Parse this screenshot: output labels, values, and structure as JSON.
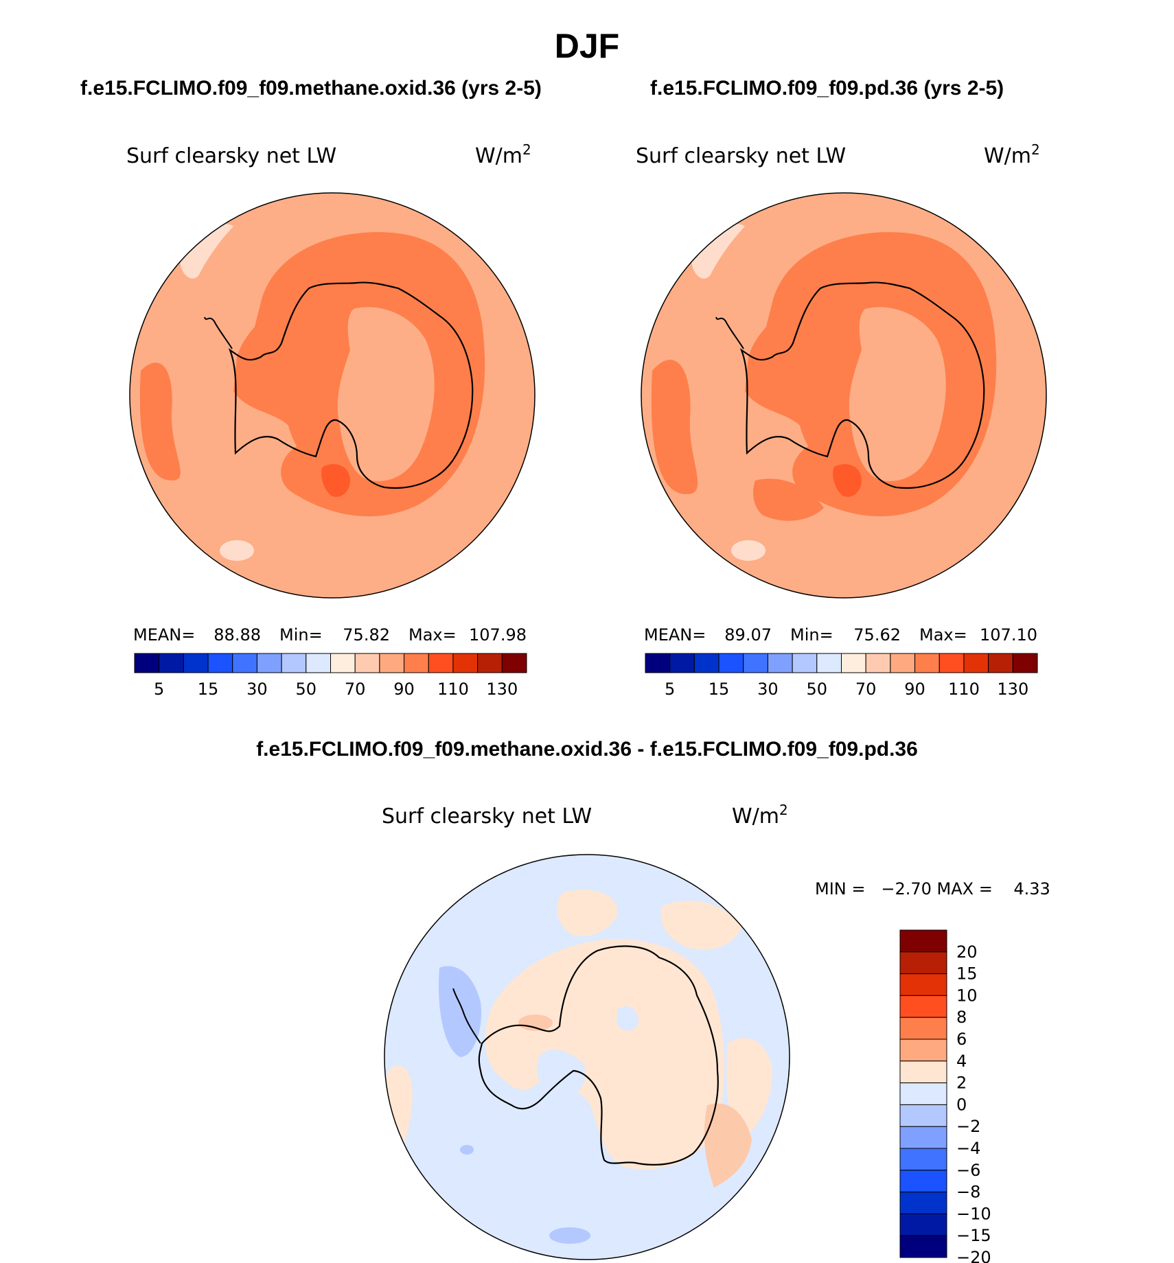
{
  "title": "DJF",
  "panels": [
    {
      "case": "f.e15.FCLIMO.f09_f09.methane.oxid.36 (yrs 2-5)",
      "variable": "Surf clearsky net LW",
      "units_base": "W/m",
      "units_exp": "2",
      "stats": {
        "mean_label": "MEAN=",
        "mean": "88.88",
        "min_label": "Min=",
        "min": "75.82",
        "max_label": "Max=",
        "max": "107.98"
      }
    },
    {
      "case": "f.e15.FCLIMO.f09_f09.pd.36 (yrs 2-5)",
      "variable": "Surf clearsky net LW",
      "units_base": "W/m",
      "units_exp": "2",
      "stats": {
        "mean_label": "MEAN=",
        "mean": "89.07",
        "min_label": "Min=",
        "min": "75.62",
        "max_label": "Max=",
        "max": "107.10"
      }
    }
  ],
  "diff": {
    "title": "f.e15.FCLIMO.f09_f09.methane.oxid.36 - f.e15.FCLIMO.f09_f09.pd.36",
    "variable": "Surf clearsky net LW",
    "units_base": "W/m",
    "units_exp": "2",
    "minmax_label": "MIN =   −2.70 MAX =    4.33"
  },
  "abs_colorbar": {
    "colors": [
      "#00007f",
      "#0019a5",
      "#0033cc",
      "#1a53ff",
      "#4073ff",
      "#7fa0ff",
      "#b3c8ff",
      "#dce9ff",
      "#feeedd",
      "#ffcbb0",
      "#fea97f",
      "#fe7f4b",
      "#ff4f20",
      "#e33206",
      "#b82005",
      "#7f0000"
    ],
    "labels": [
      "5",
      "15",
      "30",
      "50",
      "70",
      "90",
      "110",
      "130"
    ]
  },
  "diff_colorbar": {
    "colors_top_to_bottom": [
      "#7f0000",
      "#b82005",
      "#e33206",
      "#ff4f20",
      "#fe7f4b",
      "#fea97f",
      "#ffe6d3",
      "#dce9ff",
      "#b3c8ff",
      "#7fa0ff",
      "#4073ff",
      "#1a53ff",
      "#0033cc",
      "#0019a5",
      "#00007f"
    ],
    "labels_top_to_bottom": [
      "20",
      "15",
      "10",
      "8",
      "6",
      "4",
      "2",
      "0",
      "−2",
      "−4",
      "−6",
      "−8",
      "−10",
      "−15",
      "−20"
    ]
  },
  "map_colors": {
    "field_base": "#fdae87",
    "field_high": "#fe7f4b",
    "field_higher": "#ff5a2a",
    "field_low": "#feddcc",
    "diff_base": "#dce9ff",
    "diff_pos": "#ffe6d3",
    "diff_pos2": "#fdc9ab",
    "diff_neg": "#b3c8ff",
    "diff_neg2": "#8fb0ff"
  }
}
